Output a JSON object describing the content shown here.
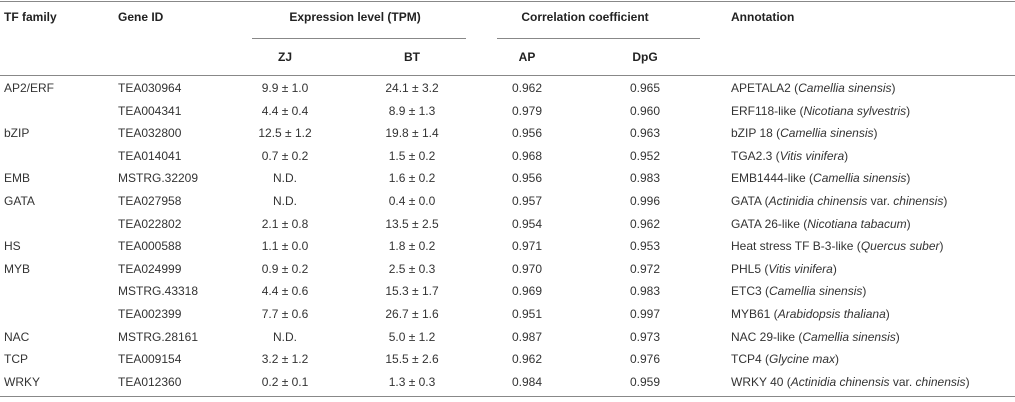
{
  "header": {
    "tf_family": "TF family",
    "gene_id": "Gene ID",
    "expression": "Expression level (TPM)",
    "correlation": "Correlation coefficient",
    "annotation": "Annotation",
    "zj": "ZJ",
    "bt": "BT",
    "ap": "AP",
    "dpg": "DpG"
  },
  "table": {
    "rows": [
      {
        "family": "AP2/ERF",
        "gene_id": "TEA030964",
        "zj": "9.9 ± 1.0",
        "bt": "24.1 ± 3.2",
        "ap": "0.962",
        "dpg": "0.965",
        "annotation": [
          {
            "text": "APETALA2 ("
          },
          {
            "text": "Camellia sinensis",
            "italic": true
          },
          {
            "text": ")"
          }
        ]
      },
      {
        "family": null,
        "gene_id": "TEA004341",
        "zj": "4.4 ± 0.4",
        "bt": "8.9 ± 1.3",
        "ap": "0.979",
        "dpg": "0.960",
        "annotation": [
          {
            "text": "ERF118-like ("
          },
          {
            "text": "Nicotiana sylvestris",
            "italic": true
          },
          {
            "text": ")"
          }
        ]
      },
      {
        "family": "bZIP",
        "gene_id": "TEA032800",
        "zj": "12.5 ± 1.2",
        "bt": "19.8 ± 1.4",
        "ap": "0.956",
        "dpg": "0.963",
        "annotation": [
          {
            "text": "bZIP 18 ("
          },
          {
            "text": "Camellia sinensis",
            "italic": true
          },
          {
            "text": ")"
          }
        ]
      },
      {
        "family": null,
        "gene_id": "TEA014041",
        "zj": "0.7 ± 0.2",
        "bt": "1.5 ± 0.2",
        "ap": "0.968",
        "dpg": "0.952",
        "annotation": [
          {
            "text": "TGA2.3 ("
          },
          {
            "text": "Vitis vinifera",
            "italic": true
          },
          {
            "text": ")"
          }
        ]
      },
      {
        "family": "EMB",
        "gene_id": "MSTRG.32209",
        "zj": "N.D.",
        "bt": "1.6 ± 0.2",
        "ap": "0.956",
        "dpg": "0.983",
        "annotation": [
          {
            "text": "EMB1444-like ("
          },
          {
            "text": "Camellia sinensis",
            "italic": true
          },
          {
            "text": ")"
          }
        ]
      },
      {
        "family": "GATA",
        "gene_id": "TEA027958",
        "zj": "N.D.",
        "bt": "0.4 ± 0.0",
        "ap": "0.957",
        "dpg": "0.996",
        "annotation": [
          {
            "text": "GATA ("
          },
          {
            "text": "Actinidia chinensis",
            "italic": true
          },
          {
            "text": " var. "
          },
          {
            "text": "chinensis",
            "italic": true
          },
          {
            "text": ")"
          }
        ]
      },
      {
        "family": null,
        "gene_id": "TEA022802",
        "zj": "2.1 ± 0.8",
        "bt": "13.5 ± 2.5",
        "ap": "0.954",
        "dpg": "0.962",
        "annotation": [
          {
            "text": "GATA 26-like ("
          },
          {
            "text": "Nicotiana tabacum",
            "italic": true
          },
          {
            "text": ")"
          }
        ]
      },
      {
        "family": "HS",
        "gene_id": "TEA000588",
        "zj": "1.1 ± 0.0",
        "bt": "1.8 ± 0.2",
        "ap": "0.971",
        "dpg": "0.953",
        "annotation": [
          {
            "text": "Heat stress TF B-3-like ("
          },
          {
            "text": "Quercus suber",
            "italic": true
          },
          {
            "text": ")"
          }
        ]
      },
      {
        "family": "MYB",
        "gene_id": "TEA024999",
        "zj": "0.9 ± 0.2",
        "bt": "2.5 ± 0.3",
        "ap": "0.970",
        "dpg": "0.972",
        "annotation": [
          {
            "text": "PHL5 ("
          },
          {
            "text": "Vitis vinifera",
            "italic": true
          },
          {
            "text": ")"
          }
        ]
      },
      {
        "family": null,
        "gene_id": "MSTRG.43318",
        "zj": "4.4 ± 0.6",
        "bt": "15.3 ± 1.7",
        "ap": "0.969",
        "dpg": "0.983",
        "annotation": [
          {
            "text": "ETC3 ("
          },
          {
            "text": "Camellia sinensis",
            "italic": true
          },
          {
            "text": ")"
          }
        ]
      },
      {
        "family": null,
        "gene_id": "TEA002399",
        "zj": "7.7 ± 0.6",
        "bt": "26.7 ± 1.6",
        "ap": "0.951",
        "dpg": "0.997",
        "annotation": [
          {
            "text": "MYB61 ("
          },
          {
            "text": "Arabidopsis thaliana",
            "italic": true
          },
          {
            "text": ")"
          }
        ]
      },
      {
        "family": "NAC",
        "gene_id": "MSTRG.28161",
        "zj": "N.D.",
        "bt": "5.0 ± 1.2",
        "ap": "0.987",
        "dpg": "0.973",
        "annotation": [
          {
            "text": "NAC 29-like ("
          },
          {
            "text": "Camellia sinensis",
            "italic": true
          },
          {
            "text": ")"
          }
        ]
      },
      {
        "family": "TCP",
        "gene_id": "TEA009154",
        "zj": "3.2 ± 1.2",
        "bt": "15.5 ± 2.6",
        "ap": "0.962",
        "dpg": "0.976",
        "annotation": [
          {
            "text": "TCP4 ("
          },
          {
            "text": "Glycine max",
            "italic": true
          },
          {
            "text": ")"
          }
        ]
      },
      {
        "family": "WRKY",
        "gene_id": "TEA012360",
        "zj": "0.2 ± 0.1",
        "bt": "1.3 ± 0.3",
        "ap": "0.984",
        "dpg": "0.959",
        "annotation": [
          {
            "text": "WRKY 40 ("
          },
          {
            "text": "Actinidia chinensis",
            "italic": true
          },
          {
            "text": " var. "
          },
          {
            "text": "chinensis",
            "italic": true
          },
          {
            "text": ")"
          }
        ]
      }
    ]
  }
}
